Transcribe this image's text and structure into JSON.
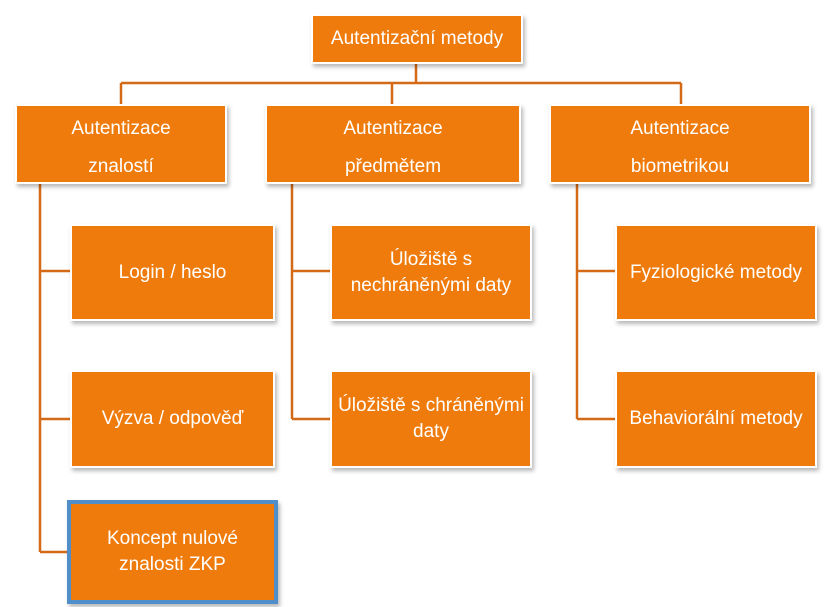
{
  "root": {
    "label": "Autentizační metody"
  },
  "categories": [
    {
      "label_line1": "Autentizace",
      "label_line2": "znalostí",
      "children": [
        {
          "line1": "Login / heslo",
          "line2": ""
        },
        {
          "line1": "Výzva / odpověď",
          "line2": ""
        },
        {
          "line1": "Koncept nulové",
          "line2": "znalosti ZKP"
        }
      ]
    },
    {
      "label_line1": "Autentizace",
      "label_line2": "předmětem",
      "children": [
        {
          "line1": "Úložiště s",
          "line2": "nechráněnými daty"
        },
        {
          "line1": "Úložiště s chráněnými",
          "line2": "daty"
        }
      ]
    },
    {
      "label_line1": "Autentizace",
      "label_line2": "biometrikou",
      "children": [
        {
          "line1": "Fyziologické metody",
          "line2": ""
        },
        {
          "line1": "Behaviorální metody",
          "line2": ""
        }
      ]
    }
  ],
  "colors": {
    "node_fill": "#ee7b0c",
    "connector": "#d2691e",
    "selected_border": "#4f8ec9"
  },
  "selected_node": "koncept-nulove-znalosti"
}
